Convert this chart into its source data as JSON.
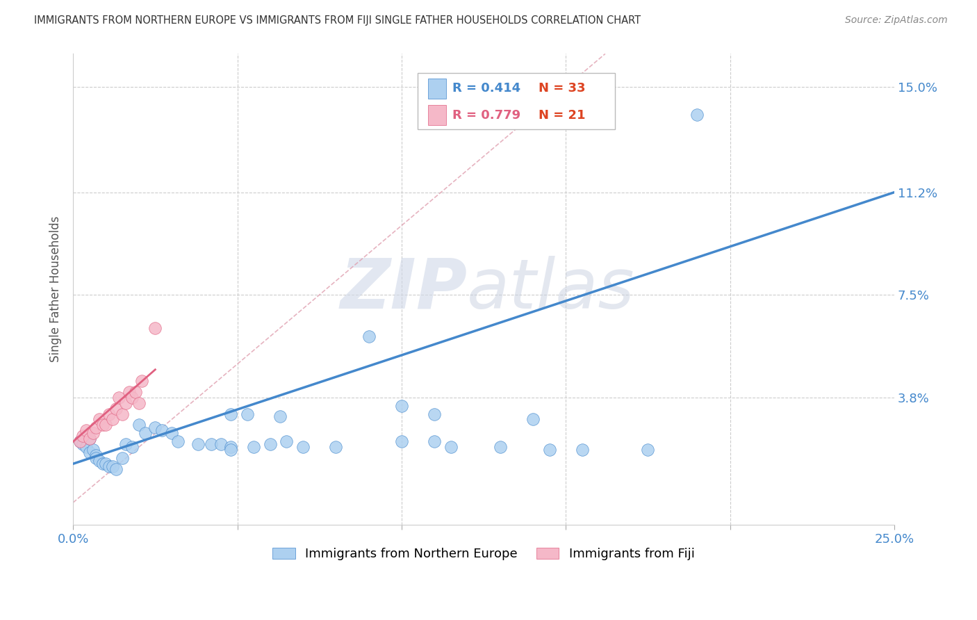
{
  "title": "IMMIGRANTS FROM NORTHERN EUROPE VS IMMIGRANTS FROM FIJI SINGLE FATHER HOUSEHOLDS CORRELATION CHART",
  "source": "Source: ZipAtlas.com",
  "ylabel": "Single Father Households",
  "legend_blue_r": "R = 0.414",
  "legend_blue_n": "N = 33",
  "legend_pink_r": "R = 0.779",
  "legend_pink_n": "N = 21",
  "legend_label_blue": "Immigrants from Northern Europe",
  "legend_label_pink": "Immigrants from Fiji",
  "blue_color": "#ADD0F0",
  "pink_color": "#F5B8C8",
  "blue_line_color": "#4488CC",
  "pink_line_color": "#E06080",
  "diag_line_color": "#E0A0B0",
  "watermark_text": "ZIP",
  "watermark_text2": "atlas",
  "xlim": [
    0.0,
    0.25
  ],
  "ylim": [
    -0.008,
    0.162
  ],
  "yticks": [
    0.038,
    0.075,
    0.112,
    0.15
  ],
  "ytick_labels": [
    "3.8%",
    "7.5%",
    "11.2%",
    "15.0%"
  ],
  "xticks": [
    0.0,
    0.05,
    0.1,
    0.15,
    0.2,
    0.25
  ],
  "xtick_labels": [
    "0.0%",
    "",
    "",
    "",
    "",
    "25.0%"
  ],
  "blue_scatter_x": [
    0.002,
    0.003,
    0.004,
    0.005,
    0.005,
    0.006,
    0.007,
    0.007,
    0.008,
    0.009,
    0.01,
    0.011,
    0.012,
    0.013,
    0.015,
    0.016,
    0.018,
    0.02,
    0.022,
    0.025,
    0.027,
    0.03,
    0.032,
    0.038,
    0.042,
    0.048,
    0.053,
    0.063,
    0.09,
    0.1,
    0.11,
    0.14,
    0.19
  ],
  "blue_scatter_y": [
    0.022,
    0.021,
    0.02,
    0.018,
    0.023,
    0.019,
    0.017,
    0.016,
    0.015,
    0.014,
    0.014,
    0.013,
    0.013,
    0.012,
    0.016,
    0.021,
    0.02,
    0.028,
    0.025,
    0.027,
    0.026,
    0.025,
    0.022,
    0.021,
    0.021,
    0.032,
    0.032,
    0.031,
    0.06,
    0.035,
    0.032,
    0.03,
    0.14
  ],
  "blue_scatter_extra_x": [
    0.045,
    0.048,
    0.048,
    0.055,
    0.06,
    0.065,
    0.07,
    0.08,
    0.1,
    0.11,
    0.115,
    0.13,
    0.145,
    0.155,
    0.175
  ],
  "blue_scatter_extra_y": [
    0.021,
    0.02,
    0.019,
    0.02,
    0.021,
    0.022,
    0.02,
    0.02,
    0.022,
    0.022,
    0.02,
    0.02,
    0.019,
    0.019,
    0.019
  ],
  "pink_scatter_x": [
    0.002,
    0.003,
    0.004,
    0.005,
    0.006,
    0.007,
    0.008,
    0.009,
    0.01,
    0.011,
    0.012,
    0.013,
    0.014,
    0.015,
    0.016,
    0.017,
    0.018,
    0.019,
    0.02,
    0.021,
    0.025
  ],
  "pink_scatter_y": [
    0.022,
    0.024,
    0.026,
    0.023,
    0.025,
    0.027,
    0.03,
    0.028,
    0.028,
    0.032,
    0.03,
    0.034,
    0.038,
    0.032,
    0.036,
    0.04,
    0.038,
    0.04,
    0.036,
    0.044,
    0.063
  ],
  "blue_line_x": [
    0.0,
    0.25
  ],
  "blue_line_y": [
    0.014,
    0.112
  ],
  "pink_line_x": [
    0.0,
    0.025
  ],
  "pink_line_y": [
    0.022,
    0.048
  ],
  "diag_line_x": [
    0.0,
    0.162
  ],
  "diag_line_y": [
    0.0,
    0.162
  ],
  "grid_yticks": [
    0.038,
    0.075,
    0.112,
    0.15
  ],
  "grid_xticks": [
    0.05,
    0.1,
    0.15,
    0.2
  ]
}
